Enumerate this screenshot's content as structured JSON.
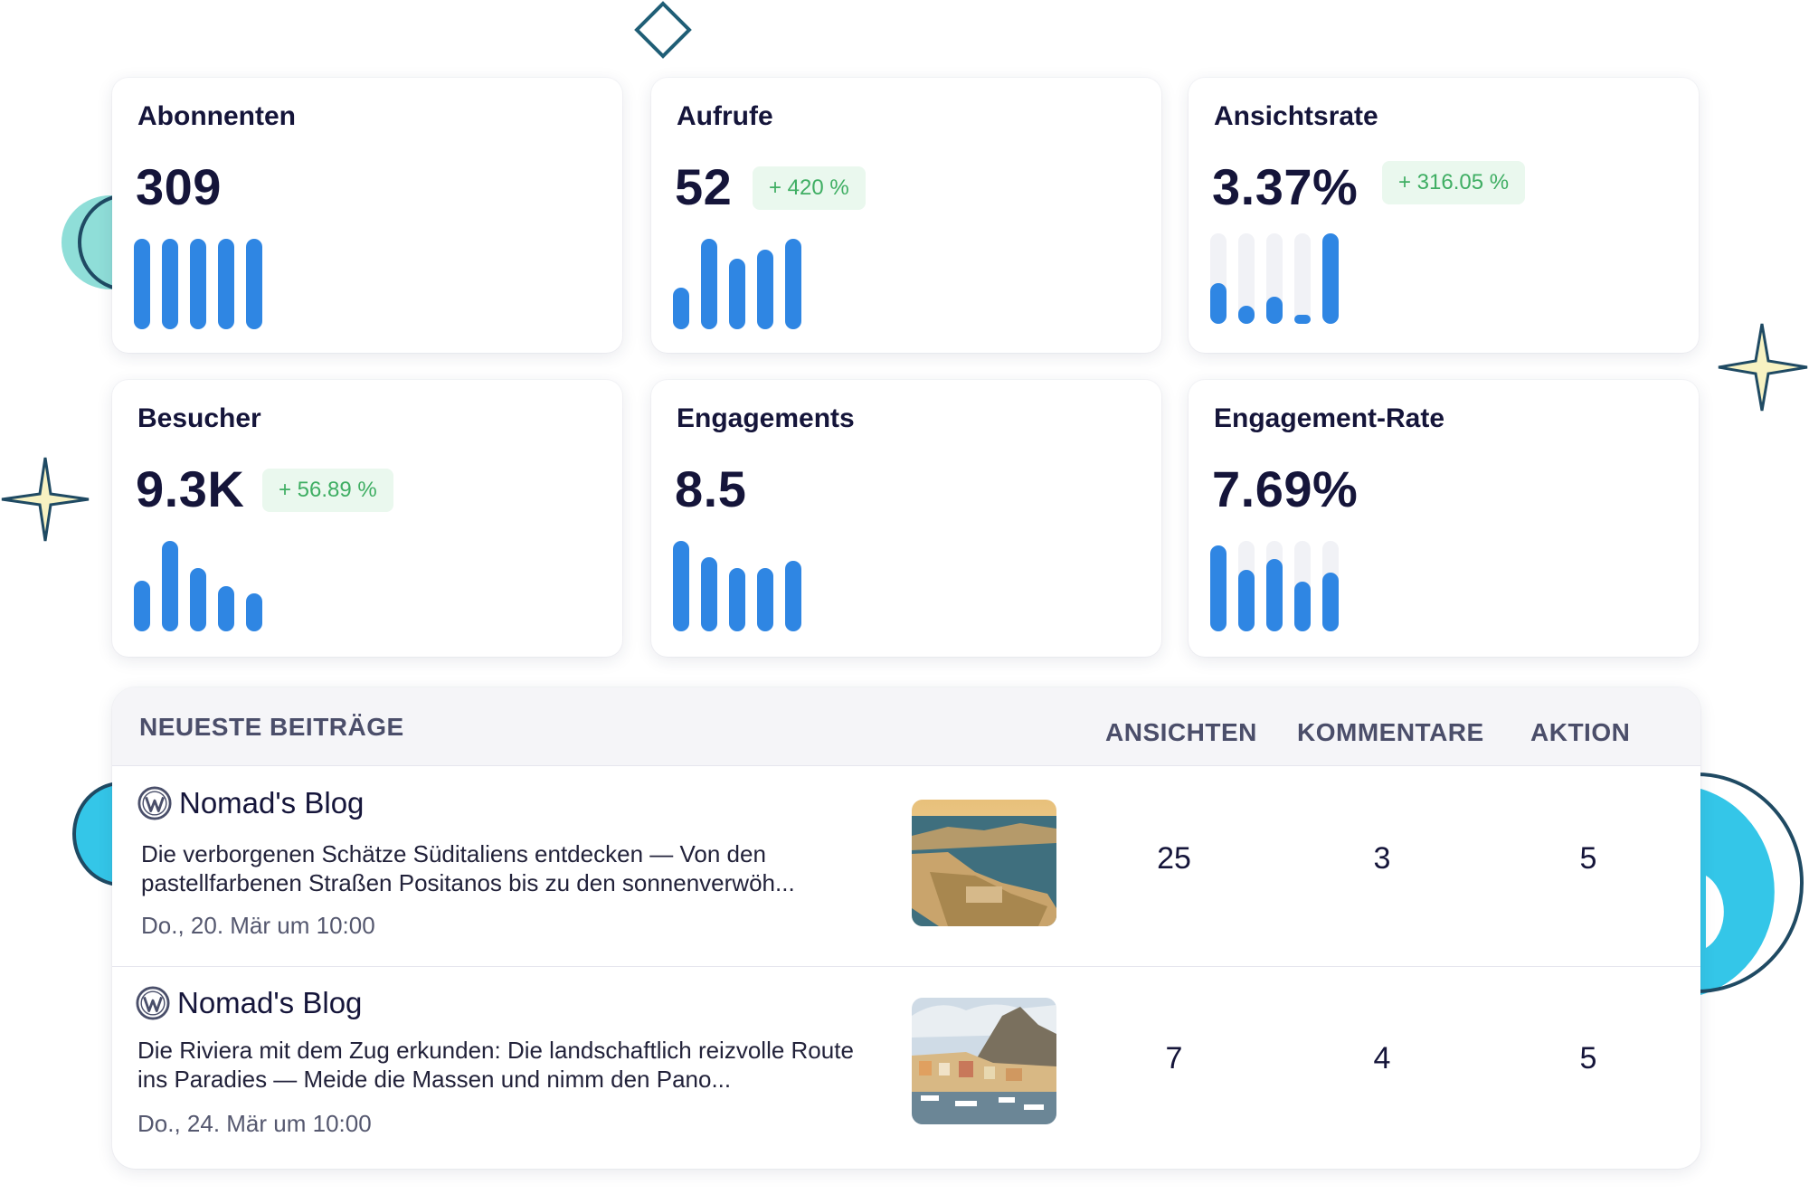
{
  "stats": [
    {
      "title": "Abonnenten",
      "value": "309",
      "badge": "",
      "bars": [
        {
          "h": 1.0,
          "track": false
        },
        {
          "h": 1.0,
          "track": false
        },
        {
          "h": 1.0,
          "track": false
        },
        {
          "h": 1.0,
          "track": false
        },
        {
          "h": 1.0,
          "track": false
        }
      ]
    },
    {
      "title": "Aufrufe",
      "value": "52",
      "badge": "+ 420 %",
      "bars": [
        {
          "h": 0.46,
          "track": false
        },
        {
          "h": 1.0,
          "track": false
        },
        {
          "h": 0.78,
          "track": false
        },
        {
          "h": 0.88,
          "track": false
        },
        {
          "h": 1.0,
          "track": false
        }
      ]
    },
    {
      "title": "Ansichtsrate",
      "value": "3.37%",
      "badge": "+ 316.05 %",
      "bars": [
        {
          "h": 0.45,
          "track": true
        },
        {
          "h": 0.2,
          "track": true
        },
        {
          "h": 0.3,
          "track": true
        },
        {
          "h": 0.08,
          "track": true
        },
        {
          "h": 1.0,
          "track": false
        }
      ]
    },
    {
      "title": "Besucher",
      "value": "9.3K",
      "badge": "+ 56.89 %",
      "bars": [
        {
          "h": 0.56,
          "track": false
        },
        {
          "h": 1.0,
          "track": false
        },
        {
          "h": 0.7,
          "track": false
        },
        {
          "h": 0.5,
          "track": false
        },
        {
          "h": 0.42,
          "track": false
        }
      ]
    },
    {
      "title": "Engagements",
      "value": "8.5",
      "badge": "",
      "bars": [
        {
          "h": 1.0,
          "track": false
        },
        {
          "h": 0.82,
          "track": false
        },
        {
          "h": 0.7,
          "track": false
        },
        {
          "h": 0.7,
          "track": false
        },
        {
          "h": 0.78,
          "track": false
        }
      ]
    },
    {
      "title": "Engagement-Rate",
      "value": "7.69%",
      "badge": "",
      "bars": [
        {
          "h": 0.95,
          "track": false
        },
        {
          "h": 0.68,
          "track": true
        },
        {
          "h": 0.8,
          "track": true
        },
        {
          "h": 0.55,
          "track": true
        },
        {
          "h": 0.65,
          "track": true
        }
      ]
    }
  ],
  "posts_table": {
    "header": {
      "posts": "NEUESTE BEITRÄGE",
      "views": "ANSICHTEN",
      "comments": "KOMMENTARE",
      "action": "AKTION"
    },
    "rows": [
      {
        "blog": "Nomad's Blog",
        "excerpt": "Die verborgenen Schätze Süditaliens entdecken — Von den pastellfarbenen Straßen Positanos bis zu den sonnenverwöh...",
        "date": "Do., 20. Mär um 10:00",
        "views": "25",
        "comments": "3",
        "action": "5"
      },
      {
        "blog": "Nomad's Blog",
        "excerpt": "Die Riviera mit dem Zug erkunden: Die landschaftlich reizvolle Route ins Paradies — Meide die Massen und nimm den Pano...",
        "date": "Do., 24. Mär um 10:00",
        "views": "7",
        "comments": "4",
        "action": "5"
      }
    ]
  },
  "colors": {
    "bar": "#2f86e3",
    "track": "#f1f2f6",
    "badge_bg": "#eaf8ee",
    "badge_text": "#3fae63",
    "accent_teal": "#8fded8",
    "accent_cyan": "#34c6e8",
    "outline": "#1f4a63"
  }
}
